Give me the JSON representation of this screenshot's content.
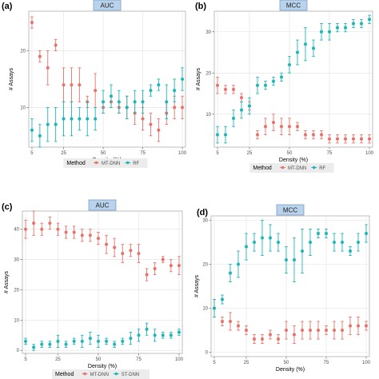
{
  "colors": {
    "series_a": "#e8726a",
    "series_b": "#1fb5b8",
    "panel_bg": "#ffffff",
    "panel_border": "#b0b0b0",
    "grid": "#e2e2e2",
    "strip_fill": "#b9d3ec",
    "strip_border": "#6f95bf"
  },
  "chart_data": [
    {
      "type": "scatter",
      "panel_letter": "(a)",
      "title": "AUC",
      "xlabel": "Density (%)",
      "ylabel": "# Assays",
      "xlim": [
        3,
        102
      ],
      "ylim": [
        3,
        27
      ],
      "x_ticks": [
        5,
        25,
        50,
        75,
        100
      ],
      "y_ticks": [
        10,
        20
      ],
      "grid": true,
      "legend": {
        "title": "Method",
        "position": "bottom",
        "entries": [
          "MT-DNN",
          "RF"
        ]
      },
      "x": [
        5,
        10,
        15,
        20,
        25,
        30,
        35,
        40,
        45,
        50,
        55,
        60,
        65,
        70,
        75,
        80,
        85,
        90,
        95,
        100
      ],
      "series": [
        {
          "name": "MT-DNN",
          "values": [
            25,
            19,
            17,
            21,
            14,
            14,
            14,
            11,
            13,
            10,
            11,
            10,
            10,
            9,
            8,
            7,
            6,
            9,
            10,
            10
          ],
          "lower": [
            24,
            18,
            14,
            20,
            11,
            11,
            11,
            10,
            10,
            9,
            10,
            9,
            8,
            7,
            6,
            5,
            4,
            7,
            8,
            8
          ],
          "upper": [
            26,
            20,
            20,
            22,
            17,
            17,
            17,
            12,
            16,
            11,
            12,
            11,
            12,
            11,
            10,
            9,
            8,
            11,
            12,
            12
          ]
        },
        {
          "name": "RF",
          "values": [
            6,
            5,
            7,
            7,
            8,
            8,
            8,
            8,
            8,
            11,
            12,
            11,
            10,
            11,
            11,
            13,
            14,
            11,
            13,
            15
          ],
          "lower": [
            4,
            3,
            4,
            4,
            5,
            5,
            6,
            5,
            6,
            9,
            10,
            9,
            8,
            9,
            9,
            12,
            13,
            8,
            11,
            13
          ],
          "upper": [
            8,
            7,
            10,
            10,
            11,
            11,
            10,
            11,
            10,
            13,
            14,
            13,
            12,
            13,
            13,
            14,
            15,
            14,
            15,
            17
          ]
        }
      ]
    },
    {
      "type": "scatter",
      "panel_letter": "(b)",
      "title": "MCC",
      "xlabel": "Density (%)",
      "ylabel": "# Assays",
      "xlim": [
        3,
        102
      ],
      "ylim": [
        2,
        35
      ],
      "x_ticks": [
        5,
        25,
        50,
        75,
        100
      ],
      "y_ticks": [
        10,
        20,
        30
      ],
      "grid": true,
      "legend": {
        "title": "Method",
        "position": "bottom",
        "entries": [
          "MT-DNN",
          "RF"
        ]
      },
      "x": [
        5,
        10,
        15,
        20,
        25,
        30,
        35,
        40,
        45,
        50,
        55,
        60,
        65,
        70,
        75,
        80,
        85,
        90,
        95,
        100
      ],
      "series": [
        {
          "name": "MT-DNN",
          "values": [
            17,
            16,
            16,
            14,
            12,
            5,
            7,
            8,
            7,
            7,
            7,
            5,
            5,
            5,
            4,
            4,
            4,
            4,
            4,
            4
          ],
          "lower": [
            15,
            15,
            15,
            13,
            11,
            4,
            5,
            6,
            5,
            5,
            6,
            4,
            4,
            4,
            3,
            3,
            3,
            3,
            3,
            3
          ],
          "upper": [
            19,
            17,
            17,
            15,
            13,
            6,
            9,
            10,
            9,
            9,
            8,
            6,
            6,
            6,
            5,
            5,
            5,
            5,
            5,
            5
          ]
        },
        {
          "name": "RF",
          "values": [
            5,
            5,
            9,
            11,
            12,
            17,
            17,
            18,
            19,
            22,
            25,
            27,
            26,
            30,
            30,
            31,
            31,
            32,
            32,
            33
          ],
          "lower": [
            3,
            3,
            7,
            9,
            10,
            15,
            16,
            17,
            18,
            20,
            22,
            23,
            24,
            28,
            28,
            30,
            30,
            31,
            31,
            32
          ],
          "upper": [
            7,
            7,
            11,
            13,
            14,
            19,
            18,
            19,
            20,
            24,
            28,
            31,
            28,
            32,
            32,
            32,
            32,
            33,
            33,
            34
          ]
        }
      ]
    },
    {
      "type": "scatter",
      "panel_letter": "(c)",
      "title": "AUC",
      "xlabel": "Density (%)",
      "ylabel": "# Assays",
      "xlim": [
        3,
        102
      ],
      "ylim": [
        -1,
        46
      ],
      "x_ticks": [
        5,
        25,
        50,
        75,
        100
      ],
      "y_ticks": [
        0,
        10,
        20,
        30,
        40
      ],
      "grid": true,
      "legend": {
        "title": "Method",
        "position": "bottom",
        "entries": [
          "MT-DNN",
          "ST-DNN"
        ]
      },
      "x": [
        5,
        10,
        15,
        20,
        25,
        30,
        35,
        40,
        45,
        50,
        55,
        60,
        65,
        70,
        75,
        80,
        85,
        90,
        95,
        100
      ],
      "series": [
        {
          "name": "MT-DNN",
          "values": [
            40,
            42,
            40,
            42,
            40,
            39,
            39,
            38,
            38,
            37,
            35,
            34,
            32,
            33,
            32,
            25,
            27,
            30,
            28,
            28
          ],
          "lower": [
            37,
            38,
            38,
            40,
            38,
            37,
            37,
            36,
            36,
            35,
            32,
            31,
            29,
            31,
            29,
            23,
            25,
            29,
            26,
            25
          ],
          "upper": [
            43,
            46,
            42,
            44,
            42,
            41,
            41,
            40,
            40,
            39,
            38,
            37,
            35,
            35,
            35,
            27,
            29,
            31,
            30,
            31
          ]
        },
        {
          "name": "ST-DNN",
          "values": [
            3,
            1,
            2,
            2,
            3,
            2,
            3,
            3,
            4,
            3,
            3,
            2,
            3,
            4,
            5,
            7,
            5,
            5,
            5,
            6
          ],
          "lower": [
            2,
            0,
            1,
            1,
            1,
            1,
            2,
            1,
            2,
            1,
            2,
            1,
            2,
            2,
            3,
            5,
            3,
            4,
            4,
            5
          ],
          "upper": [
            4,
            2,
            3,
            3,
            5,
            3,
            4,
            5,
            6,
            5,
            4,
            3,
            4,
            6,
            7,
            9,
            7,
            6,
            6,
            7
          ]
        }
      ]
    },
    {
      "type": "scatter",
      "panel_letter": "(d)",
      "title": "MCC",
      "xlabel": "Density (%)",
      "ylabel": "# Assays",
      "xlim": [
        3,
        102
      ],
      "ylim": [
        -1,
        31
      ],
      "x_ticks": [
        5,
        25,
        50,
        75,
        100
      ],
      "y_ticks": [
        0,
        10,
        20,
        30
      ],
      "grid": true,
      "legend": {
        "title": "",
        "position": "bottom",
        "entries": []
      },
      "x": [
        5,
        10,
        15,
        20,
        25,
        30,
        35,
        40,
        45,
        50,
        55,
        60,
        65,
        70,
        75,
        80,
        85,
        90,
        95,
        100
      ],
      "series": [
        {
          "name": "",
          "values": [
            10,
            7,
            7,
            6,
            5,
            3,
            3,
            4,
            3,
            5,
            4,
            5,
            5,
            5,
            5,
            5,
            5,
            6,
            6,
            6
          ],
          "lower": [
            8,
            6,
            5,
            5,
            4,
            2,
            2,
            3,
            2,
            3,
            2,
            3,
            3,
            3,
            4,
            3,
            3,
            4,
            4,
            5
          ],
          "upper": [
            12,
            8,
            9,
            7,
            6,
            4,
            4,
            5,
            4,
            7,
            6,
            7,
            7,
            7,
            6,
            7,
            7,
            8,
            8,
            7
          ]
        },
        {
          "name": "",
          "values": [
            10,
            12,
            18,
            20,
            24,
            25,
            26,
            26,
            25,
            21,
            21,
            23,
            25,
            27,
            27,
            25,
            25,
            23,
            25,
            27
          ],
          "lower": [
            8,
            11,
            16,
            17,
            21,
            23,
            22,
            23,
            23,
            18,
            16,
            18,
            22,
            26,
            26,
            23,
            23,
            22,
            23,
            25
          ],
          "upper": [
            12,
            13,
            20,
            23,
            27,
            27,
            30,
            29,
            27,
            24,
            26,
            28,
            28,
            28,
            28,
            27,
            27,
            24,
            27,
            29
          ]
        }
      ]
    }
  ]
}
